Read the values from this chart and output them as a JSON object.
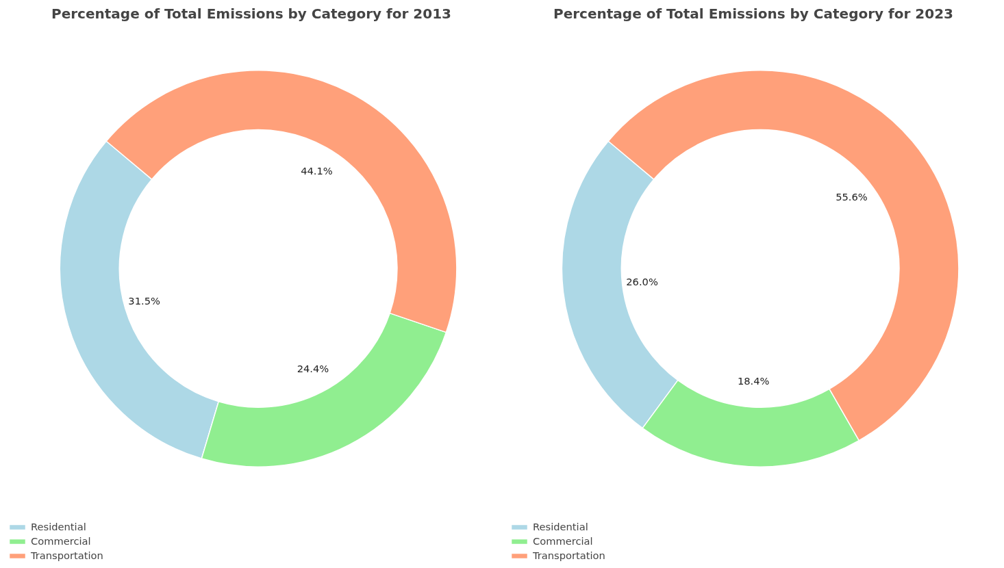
{
  "chart_data": [
    {
      "type": "donut",
      "title": "Percentage of Total Emissions by Category for 2013",
      "categories": [
        "Residential",
        "Commercial",
        "Transportation"
      ],
      "values": [
        31.5,
        24.4,
        44.1
      ],
      "value_labels": [
        "31.5%",
        "24.4%",
        "44.1%"
      ],
      "colors": [
        "#add8e6",
        "#90ee90",
        "#ffa07a"
      ],
      "legend": "bottom left"
    },
    {
      "type": "donut",
      "title": "Percentage of Total Emissions by Category for 2023",
      "categories": [
        "Residential",
        "Commercial",
        "Transportation"
      ],
      "values": [
        26.0,
        18.4,
        55.6
      ],
      "value_labels": [
        "26.0%",
        "18.4%",
        "55.6%"
      ],
      "colors": [
        "#add8e6",
        "#90ee90",
        "#ffa07a"
      ],
      "legend": "bottom left"
    }
  ]
}
